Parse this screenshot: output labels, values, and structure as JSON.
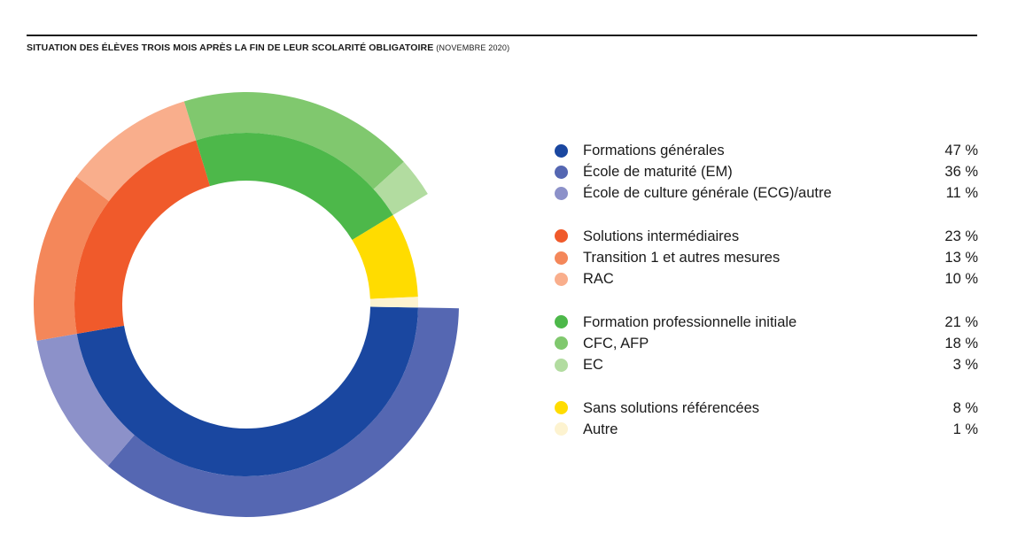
{
  "title": {
    "main": "SITUATION DES ÉLÈVES TROIS MOIS APRÈS LA FIN DE LEUR SCOLARITÉ OBLIGATOIRE",
    "sub": "(NOVEMBRE 2020)"
  },
  "chart_data": {
    "type": "pie",
    "subtype": "two-level donut (sunburst)",
    "inner_ring": [
      {
        "label": "Formations générales",
        "value": 47,
        "color": "#1a47a0"
      },
      {
        "label": "Solutions intermédiaires",
        "value": 23,
        "color": "#f05a2b"
      },
      {
        "label": "Formation professionnelle initiale",
        "value": 21,
        "color": "#4db84a"
      },
      {
        "label": "Sans solutions référencées",
        "value": 8,
        "color": "#ffdc00"
      },
      {
        "label": "Autre",
        "value": 1,
        "color": "#fdf3d0"
      }
    ],
    "outer_ring": [
      {
        "label": "École de maturité (EM)",
        "value": 36,
        "color": "#5567b2"
      },
      {
        "label": "École de culture générale (ECG)/autre",
        "value": 11,
        "color": "#8c91c9"
      },
      {
        "label": "Transition 1 et autres mesures",
        "value": 13,
        "color": "#f4875a"
      },
      {
        "label": "RAC",
        "value": 10,
        "color": "#f9ae8c"
      },
      {
        "label": "CFC, AFP",
        "value": 18,
        "color": "#80c86e"
      },
      {
        "label": "EC",
        "value": 3,
        "color": "#b2dca0"
      }
    ],
    "legend_position": "right"
  },
  "legend": [
    {
      "label": "Formations générales",
      "value": "47 %",
      "color": "#1a47a0",
      "gap": false
    },
    {
      "label": "École de maturité (EM)",
      "value": "36 %",
      "color": "#5567b2",
      "gap": false
    },
    {
      "label": "École de culture générale (ECG)/autre",
      "value": "11 %",
      "color": "#8c91c9",
      "gap": false
    },
    {
      "label": "Solutions intermédiaires",
      "value": "23 %",
      "color": "#f05a2b",
      "gap": true
    },
    {
      "label": "Transition 1 et autres mesures",
      "value": "13 %",
      "color": "#f4875a",
      "gap": false
    },
    {
      "label": "RAC",
      "value": "10 %",
      "color": "#f9ae8c",
      "gap": false
    },
    {
      "label": "Formation professionnelle initiale",
      "value": "21 %",
      "color": "#4db84a",
      "gap": true
    },
    {
      "label": "CFC, AFP",
      "value": "18 %",
      "color": "#80c86e",
      "gap": false
    },
    {
      "label": "EC",
      "value": "3 %",
      "color": "#b2dca0",
      "gap": false
    },
    {
      "label": "Sans solutions référencées",
      "value": "8 %",
      "color": "#ffdc00",
      "gap": true
    },
    {
      "label": "Autre",
      "value": "1 %",
      "color": "#fdf3d0",
      "gap": false
    }
  ]
}
